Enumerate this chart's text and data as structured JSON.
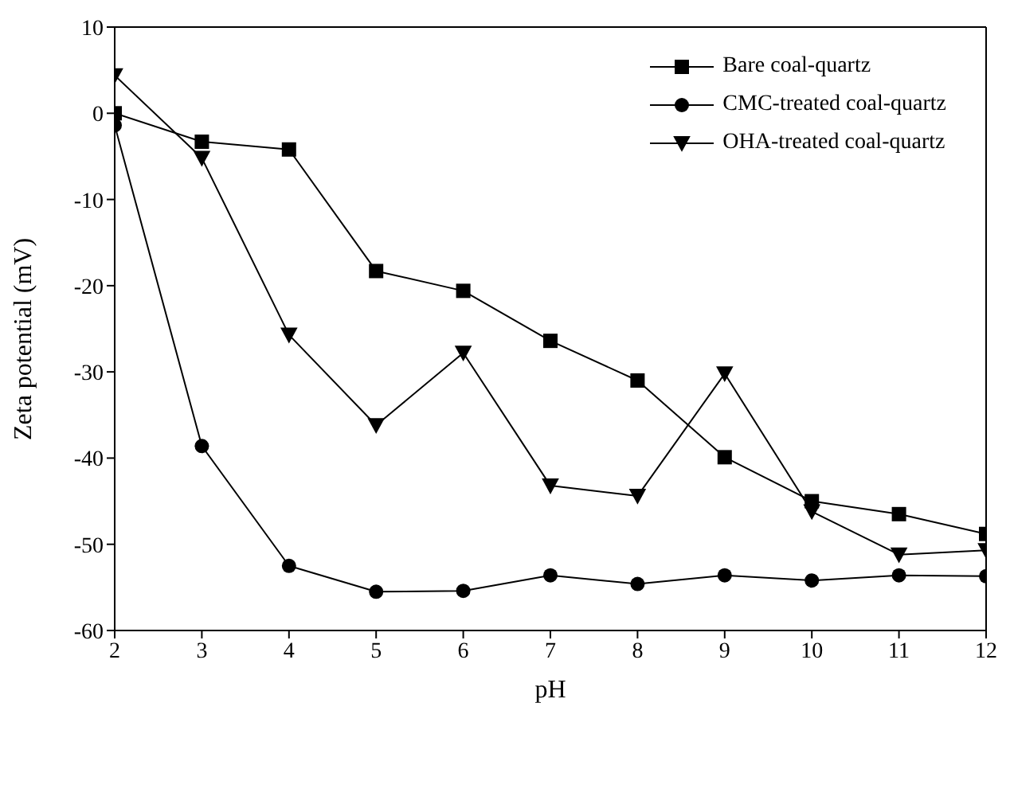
{
  "chart_data": {
    "type": "line",
    "xlabel": "pH",
    "ylabel": "Zeta potential (mV)",
    "x": [
      2,
      3,
      4,
      5,
      6,
      7,
      8,
      9,
      10,
      11,
      12
    ],
    "xlim": [
      2,
      12
    ],
    "xticks": [
      2,
      3,
      4,
      5,
      6,
      7,
      8,
      9,
      10,
      11,
      12
    ],
    "ylim": [
      -60,
      10
    ],
    "yticks": [
      -60,
      -50,
      -40,
      -30,
      -20,
      -10,
      0,
      10
    ],
    "legend": "top right",
    "grid": false,
    "line_style": "solid",
    "series": [
      {
        "name": "Bare coal-quartz",
        "color": "#000000",
        "marker": "square",
        "values": [
          0,
          -3.3,
          -4.2,
          -18.3,
          -20.6,
          -26.4,
          -31,
          -39.9,
          -45,
          -46.5,
          -48.8
        ]
      },
      {
        "name": "CMC-treated coal-quartz",
        "color": "#000000",
        "marker": "circle",
        "values": [
          -1.4,
          -38.6,
          -52.5,
          -55.5,
          -55.4,
          -53.6,
          -54.6,
          -53.6,
          -54.2,
          -53.6,
          -53.7
        ]
      },
      {
        "name": "OHA-treated coal-quartz",
        "color": "#000000",
        "marker": "triangle",
        "values": [
          4.4,
          -5.2,
          -25.7,
          -36.2,
          -27.8,
          -43.2,
          -44.4,
          -30.2,
          -46.2,
          -51.2,
          -50.7
        ]
      }
    ]
  }
}
